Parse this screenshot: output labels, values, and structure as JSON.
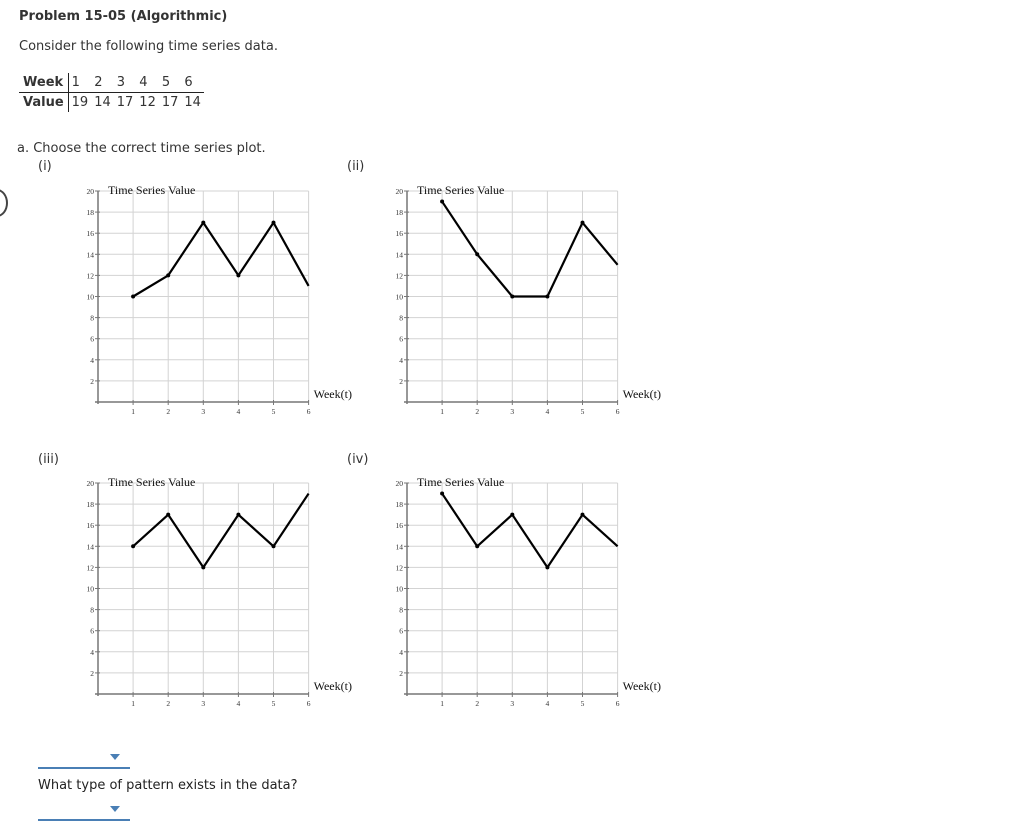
{
  "header": {
    "title": "Problem 15-05 (Algorithmic)",
    "intro": "Consider the following time series data."
  },
  "data_table": {
    "row_labels": [
      "Week",
      "Value"
    ],
    "weeks": [
      "1",
      "2",
      "3",
      "4",
      "5",
      "6"
    ],
    "values": [
      "19",
      "14",
      "17",
      "12",
      "17",
      "14"
    ]
  },
  "part_a": {
    "prompt": "a.  Choose the correct time series plot.",
    "options": [
      "(i)",
      "(ii)",
      "(iii)",
      "(iv)"
    ],
    "answer_dropdown": {
      "selected": ""
    }
  },
  "part_b": {
    "prompt": "What type of pattern exists in the data?",
    "answer_dropdown": {
      "selected": ""
    }
  },
  "colors": {
    "dropdown_accent": "#4a7fb5",
    "grid": "#d3d3d3",
    "line": "#000000"
  },
  "chart_data": [
    {
      "label": "(i)",
      "type": "line",
      "title": "Time Series Value",
      "xlabel": "Week(t)",
      "ylabel": "Time Series Value",
      "x": [
        1,
        2,
        3,
        4,
        5,
        6
      ],
      "values": [
        10,
        12,
        17,
        12,
        17,
        11
      ],
      "x_ticks": [
        "1",
        "2",
        "3",
        "4",
        "5",
        "6"
      ],
      "y_ticks": [
        "2",
        "4",
        "6",
        "8",
        "10",
        "12",
        "14",
        "16",
        "18",
        "20"
      ],
      "xlim": [
        0,
        6
      ],
      "ylim": [
        0,
        20
      ],
      "grid": true
    },
    {
      "label": "(ii)",
      "type": "line",
      "title": "Time Series Value",
      "xlabel": "Week(t)",
      "ylabel": "Time Series Value",
      "x": [
        1,
        2,
        3,
        4,
        5,
        6
      ],
      "values": [
        19,
        14,
        10,
        10,
        17,
        13
      ],
      "x_ticks": [
        "1",
        "2",
        "3",
        "4",
        "5",
        "6"
      ],
      "y_ticks": [
        "2",
        "4",
        "6",
        "8",
        "10",
        "12",
        "14",
        "16",
        "18",
        "20"
      ],
      "xlim": [
        0,
        6
      ],
      "ylim": [
        0,
        20
      ],
      "grid": true
    },
    {
      "label": "(iii)",
      "type": "line",
      "title": "Time Series Value",
      "xlabel": "Week(t)",
      "ylabel": "Time Series Value",
      "x": [
        1,
        2,
        3,
        4,
        5,
        6
      ],
      "values": [
        14,
        17,
        12,
        17,
        14,
        19
      ],
      "x_ticks": [
        "1",
        "2",
        "3",
        "4",
        "5",
        "6"
      ],
      "y_ticks": [
        "2",
        "4",
        "6",
        "8",
        "10",
        "12",
        "14",
        "16",
        "18",
        "20"
      ],
      "xlim": [
        0,
        6
      ],
      "ylim": [
        0,
        20
      ],
      "grid": true
    },
    {
      "label": "(iv)",
      "type": "line",
      "title": "Time Series Value",
      "xlabel": "Week(t)",
      "ylabel": "Time Series Value",
      "x": [
        1,
        2,
        3,
        4,
        5,
        6
      ],
      "values": [
        19,
        14,
        17,
        12,
        17,
        14
      ],
      "x_ticks": [
        "1",
        "2",
        "3",
        "4",
        "5",
        "6"
      ],
      "y_ticks": [
        "2",
        "4",
        "6",
        "8",
        "10",
        "12",
        "14",
        "16",
        "18",
        "20"
      ],
      "xlim": [
        0,
        6
      ],
      "ylim": [
        0,
        20
      ],
      "grid": true
    }
  ]
}
